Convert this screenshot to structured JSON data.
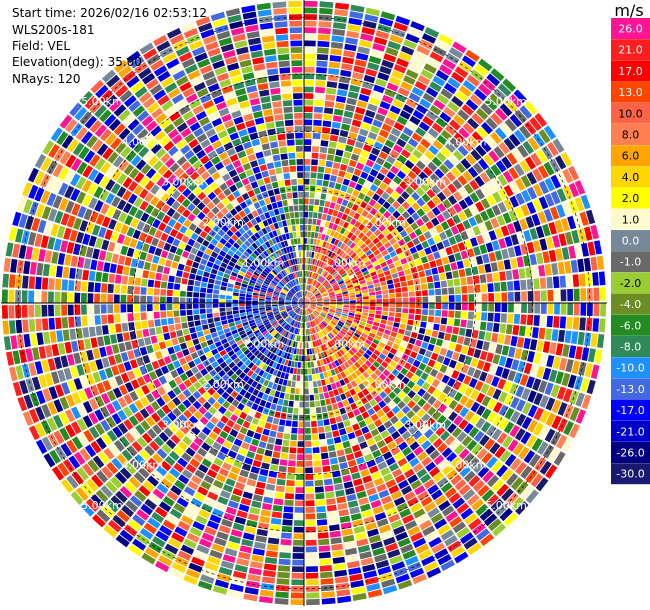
{
  "header": {
    "start_time": "Start time: 2026/02/16 02:53:12",
    "instrument": "WLS200s-181",
    "field": "Field: VEL",
    "elevation": "Elevation(deg): 35.00",
    "nrays": "NRays: 120"
  },
  "chart_data": {
    "type": "heatmap",
    "projection": "polar-ppi",
    "field": "VEL",
    "unit": "m/s",
    "nrays": 120,
    "elevation_deg": 35.0,
    "range_rings": [
      {
        "label": "1.00km",
        "km": 1
      },
      {
        "label": "2.00km",
        "km": 2
      },
      {
        "label": "3.00km",
        "km": 3
      },
      {
        "label": "4.00km",
        "km": 4
      },
      {
        "label": "5.00km",
        "km": 5
      }
    ],
    "max_range_km": 5.3,
    "colorbar": {
      "unit_label": "m/s",
      "bins": [
        {
          "label": "26.0",
          "color": "#ff1493"
        },
        {
          "label": "21.0",
          "color": "#ff1e1e"
        },
        {
          "label": "17.0",
          "color": "#ff0000"
        },
        {
          "label": "13.0",
          "color": "#ff4500"
        },
        {
          "label": "10.0",
          "color": "#ff6347"
        },
        {
          "label": "8.0",
          "color": "#ff7f50"
        },
        {
          "label": "6.0",
          "color": "#ffa500"
        },
        {
          "label": "4.0",
          "color": "#ffd700"
        },
        {
          "label": "2.0",
          "color": "#ffff00"
        },
        {
          "label": "1.0",
          "color": "#fffacd"
        },
        {
          "label": "0.0",
          "color": "#778899"
        },
        {
          "label": "-1.0",
          "color": "#696969"
        },
        {
          "label": "-2.0",
          "color": "#9acd32"
        },
        {
          "label": "-4.0",
          "color": "#6b8e23"
        },
        {
          "label": "-6.0",
          "color": "#228b22"
        },
        {
          "label": "-8.0",
          "color": "#2e8b57"
        },
        {
          "label": "-10.0",
          "color": "#1e90ff"
        },
        {
          "label": "-13.0",
          "color": "#4169e1"
        },
        {
          "label": "-17.0",
          "color": "#0000ff"
        },
        {
          "label": "-21.0",
          "color": "#0000cd"
        },
        {
          "label": "-26.0",
          "color": "#000080"
        },
        {
          "label": "-30.0",
          "color": "#191970"
        }
      ]
    }
  }
}
